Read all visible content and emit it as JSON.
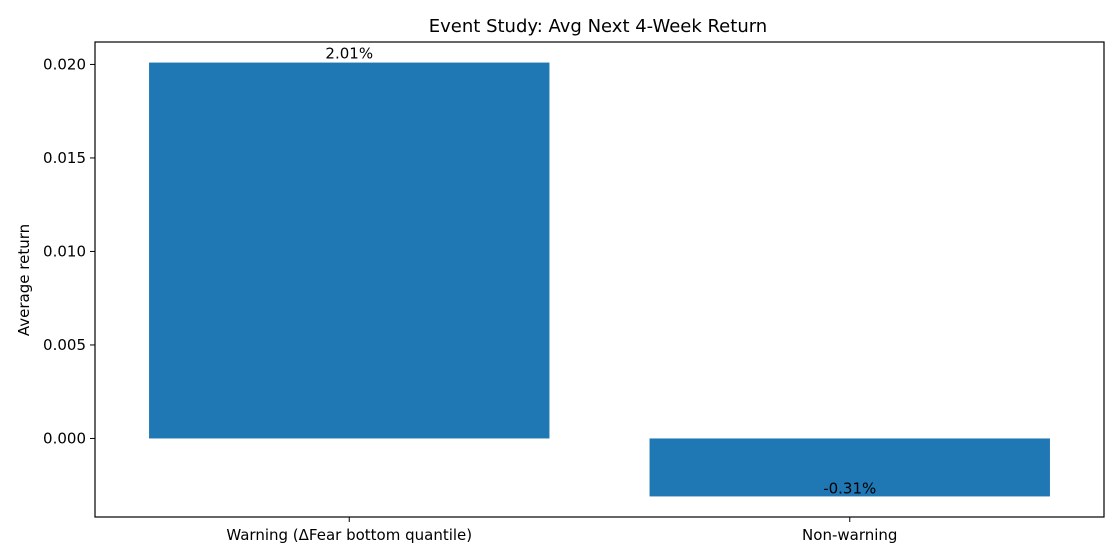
{
  "chart_data": {
    "type": "bar",
    "title": "Event Study: Avg Next 4-Week Return",
    "xlabel": "",
    "ylabel": "Average return",
    "categories": [
      "Warning (ΔFear bottom quantile)",
      "Non-warning"
    ],
    "values": [
      0.0201,
      -0.0031
    ],
    "data_labels": [
      "2.01%",
      "-0.31%"
    ],
    "yticks": [
      0.0,
      0.005,
      0.01,
      0.015,
      0.02
    ],
    "ytick_labels": [
      "0.000",
      "0.005",
      "0.010",
      "0.015",
      "0.020"
    ],
    "ylim": [
      -0.0042,
      0.0212
    ],
    "grid": false,
    "bar_color": "#1f77b4"
  }
}
